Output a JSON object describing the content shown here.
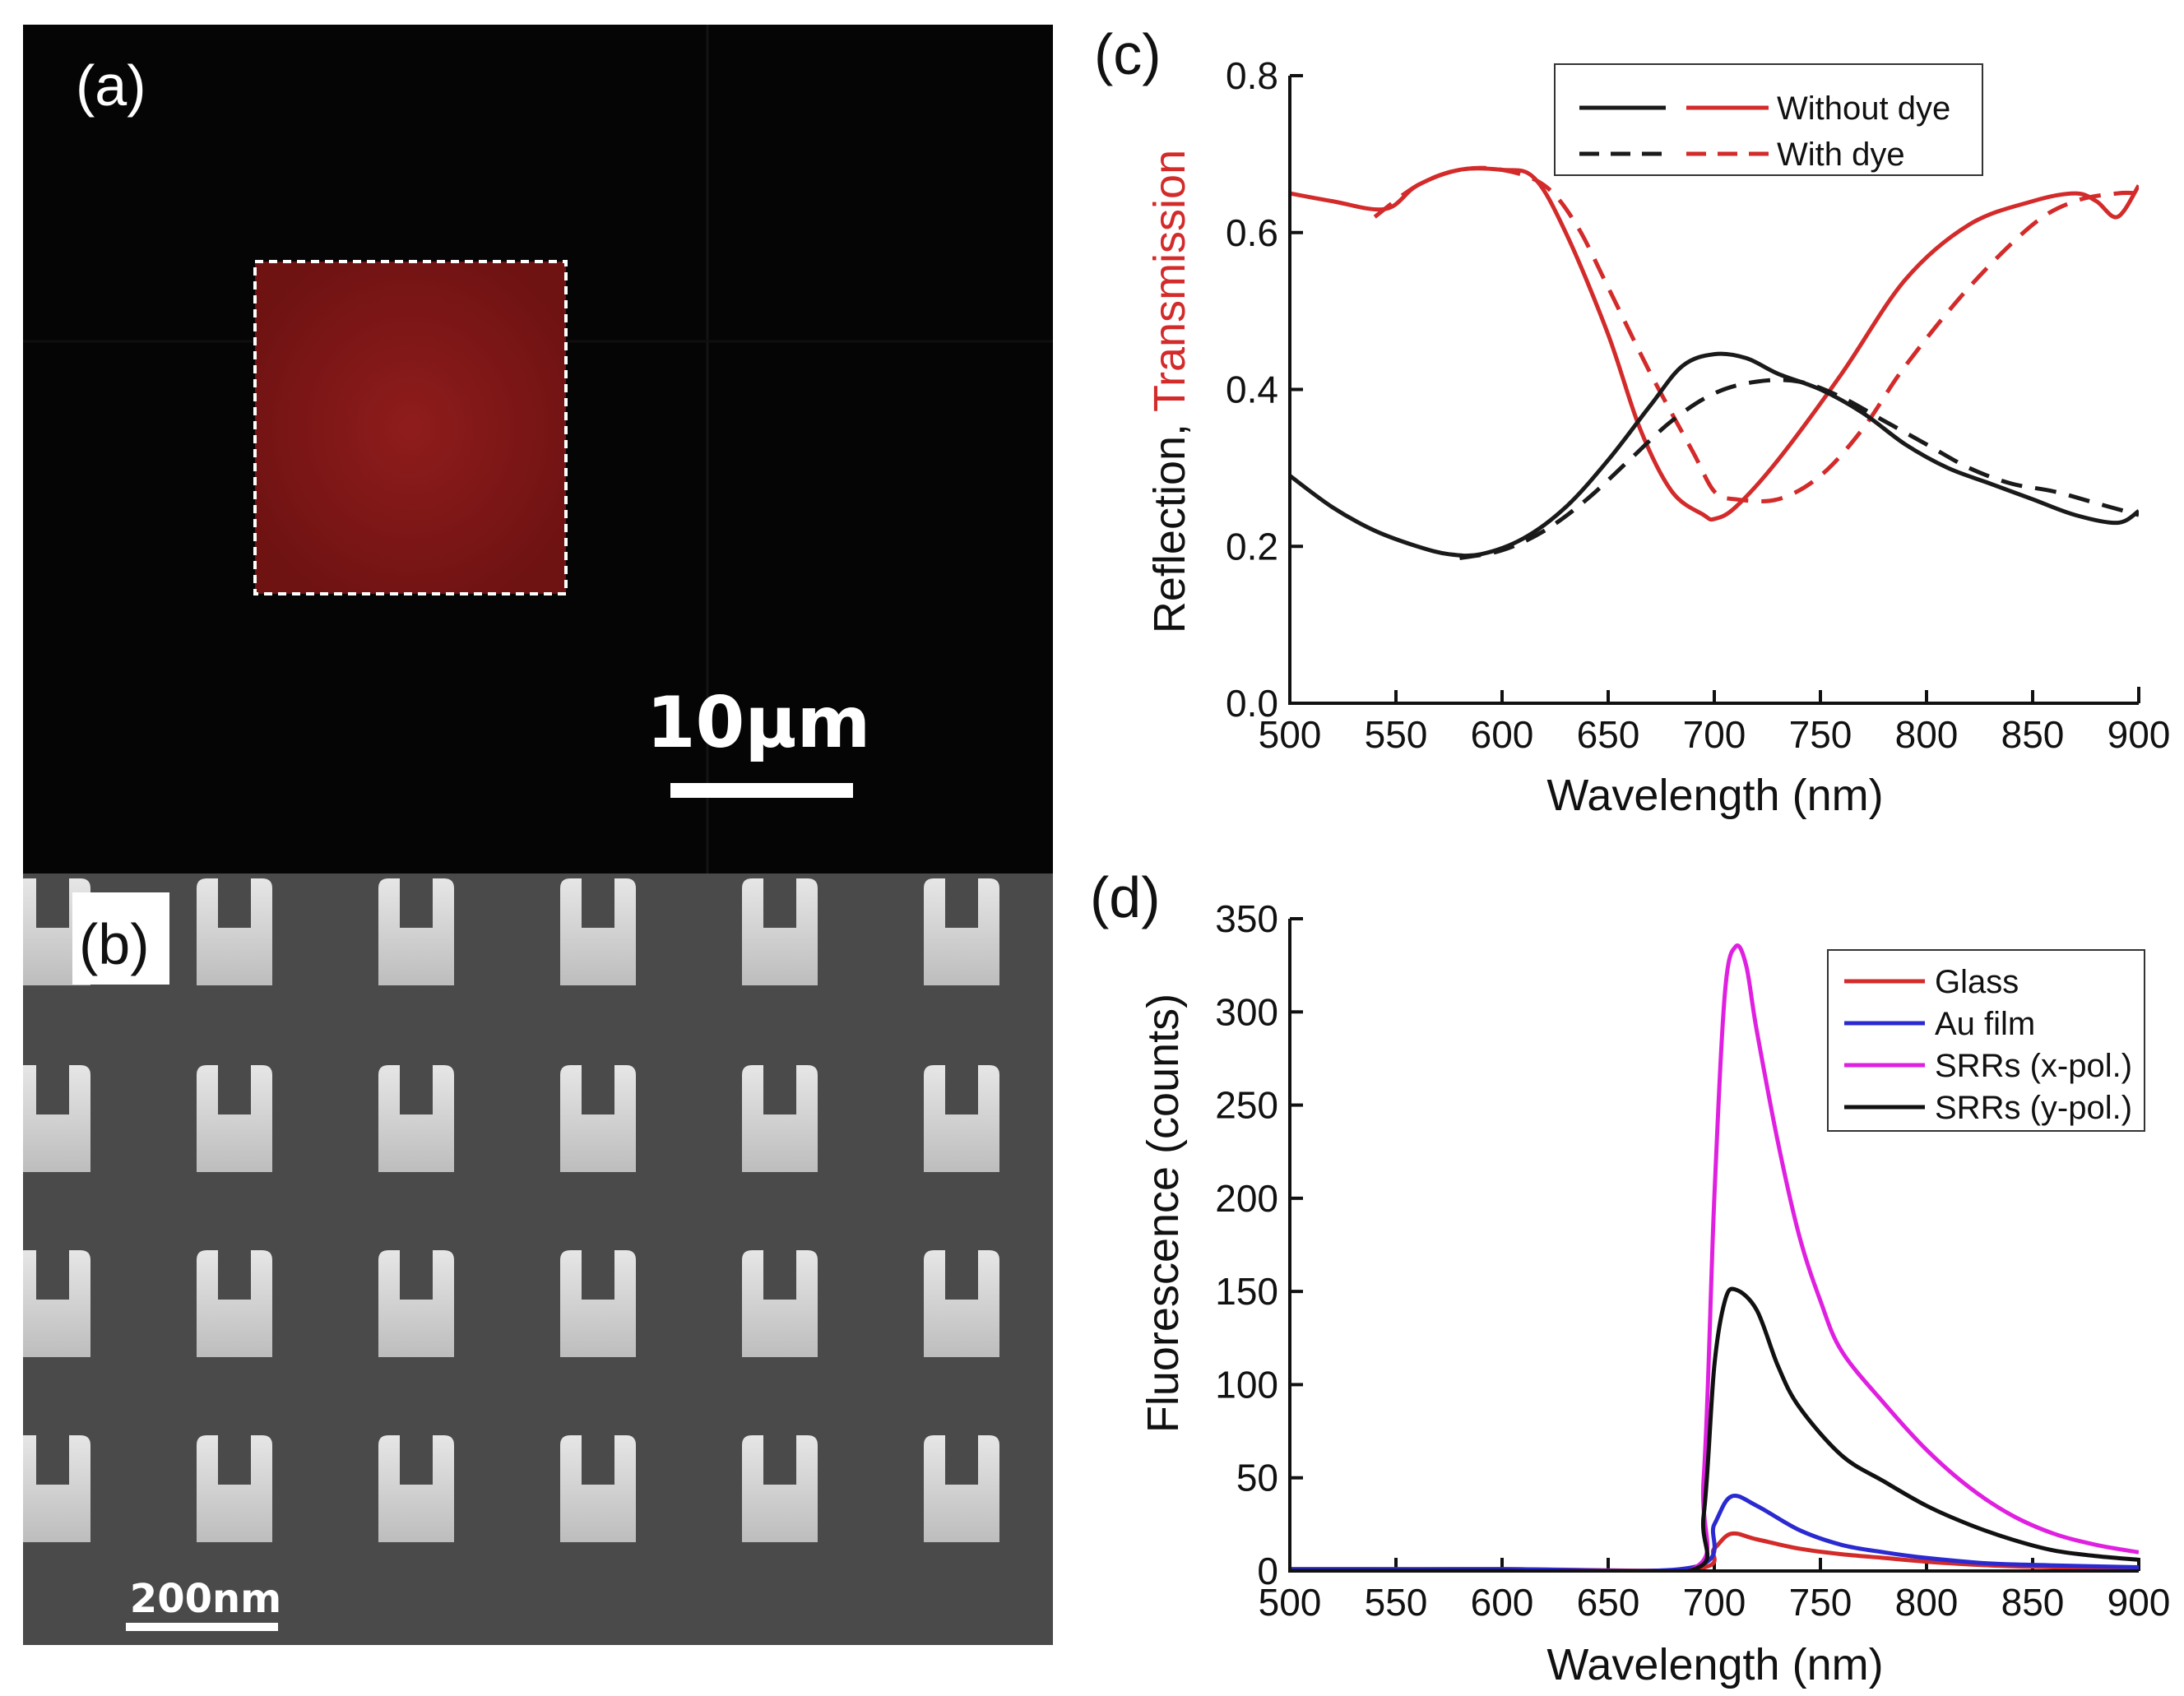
{
  "panels": {
    "a": {
      "label": "(a)",
      "scale_bar": "10μm",
      "colors": {
        "background": "#050505",
        "square": "#8a1a1a",
        "dashed": "#ffffff"
      }
    },
    "b": {
      "label": "(b)",
      "scale_bar": "200nm",
      "colors": {
        "background": "#4a4a4a",
        "srr": "#d8d8d8"
      }
    }
  },
  "chart_data": [
    {
      "id": "c",
      "type": "line",
      "panel_label": "(c)",
      "xlabel": "Wavelength (nm)",
      "ylabel_part1": "Reflection, ",
      "ylabel_part2": "Transmission",
      "xlim": [
        500,
        900
      ],
      "ylim": [
        0.0,
        0.8
      ],
      "xticks": [
        500,
        550,
        600,
        650,
        700,
        750,
        800,
        850,
        900
      ],
      "yticks": [
        "0.0",
        "0.2",
        "0.4",
        "0.6",
        "0.8"
      ],
      "legend": {
        "position": "top-right",
        "entries": [
          {
            "label": "Without dye",
            "style": "solid"
          },
          {
            "label": "With dye",
            "style": "dashed"
          }
        ]
      },
      "series": [
        {
          "name": "Transmission, without dye",
          "color": "#d32a2a",
          "style": "solid",
          "x": [
            500,
            520,
            545,
            560,
            580,
            600,
            615,
            630,
            650,
            665,
            680,
            695,
            700,
            710,
            730,
            760,
            790,
            820,
            850,
            870,
            880,
            890,
            900
          ],
          "y": [
            0.65,
            0.64,
            0.63,
            0.66,
            0.68,
            0.68,
            0.67,
            0.6,
            0.47,
            0.35,
            0.27,
            0.24,
            0.235,
            0.25,
            0.31,
            0.42,
            0.54,
            0.61,
            0.64,
            0.65,
            0.64,
            0.62,
            0.66
          ]
        },
        {
          "name": "Transmission, with dye",
          "color": "#d32a2a",
          "style": "dashed",
          "x": [
            540,
            560,
            580,
            600,
            620,
            635,
            650,
            670,
            690,
            700,
            710,
            730,
            750,
            770,
            790,
            820,
            850,
            870,
            890,
            900
          ],
          "y": [
            0.62,
            0.66,
            0.68,
            0.68,
            0.66,
            0.61,
            0.53,
            0.42,
            0.32,
            0.27,
            0.26,
            0.26,
            0.29,
            0.35,
            0.43,
            0.53,
            0.61,
            0.64,
            0.65,
            0.65
          ]
        },
        {
          "name": "Reflection, without dye",
          "color": "#1a1a1a",
          "style": "solid",
          "x": [
            500,
            520,
            540,
            560,
            575,
            590,
            610,
            630,
            650,
            670,
            685,
            700,
            715,
            730,
            750,
            770,
            790,
            810,
            830,
            850,
            870,
            890,
            900
          ],
          "y": [
            0.29,
            0.25,
            0.22,
            0.2,
            0.19,
            0.19,
            0.21,
            0.25,
            0.31,
            0.38,
            0.43,
            0.445,
            0.44,
            0.42,
            0.4,
            0.37,
            0.33,
            0.3,
            0.28,
            0.26,
            0.24,
            0.23,
            0.245
          ]
        },
        {
          "name": "Reflection, with dye",
          "color": "#1a1a1a",
          "style": "dashed",
          "x": [
            580,
            600,
            620,
            640,
            660,
            680,
            700,
            720,
            740,
            760,
            780,
            800,
            820,
            840,
            860,
            880,
            900
          ],
          "y": [
            0.185,
            0.195,
            0.22,
            0.26,
            0.31,
            0.36,
            0.395,
            0.41,
            0.41,
            0.39,
            0.36,
            0.33,
            0.3,
            0.28,
            0.27,
            0.255,
            0.24
          ]
        }
      ]
    },
    {
      "id": "d",
      "type": "line",
      "panel_label": "(d)",
      "xlabel": "Wavelength (nm)",
      "ylabel": "Fluorescence (counts)",
      "xlim": [
        500,
        900
      ],
      "ylim": [
        0,
        350
      ],
      "xticks": [
        500,
        550,
        600,
        650,
        700,
        750,
        800,
        850,
        900
      ],
      "yticks": [
        0,
        50,
        100,
        150,
        200,
        250,
        300,
        350
      ],
      "legend": {
        "position": "top-right"
      },
      "series": [
        {
          "name": "Glass",
          "color": "#d32a2a",
          "x": [
            500,
            600,
            690,
            700,
            708,
            720,
            740,
            760,
            780,
            800,
            830,
            860,
            900
          ],
          "y": [
            1,
            1,
            1,
            12,
            20,
            17,
            12,
            9,
            7,
            5,
            3,
            2,
            1
          ]
        },
        {
          "name": "Au film",
          "color": "#2a2ad0",
          "x": [
            500,
            600,
            690,
            700,
            708,
            720,
            740,
            760,
            780,
            800,
            830,
            860,
            900
          ],
          "y": [
            1,
            1,
            2,
            25,
            40,
            35,
            22,
            14,
            10,
            7,
            4,
            3,
            2
          ]
        },
        {
          "name": "SRRs (x-pol.)",
          "color": "#e020e0",
          "x": [
            500,
            600,
            688,
            695,
            700,
            705,
            710,
            715,
            720,
            730,
            740,
            750,
            760,
            780,
            800,
            820,
            840,
            860,
            880,
            900
          ],
          "y": [
            0,
            0,
            0,
            50,
            200,
            310,
            335,
            325,
            290,
            230,
            180,
            145,
            118,
            90,
            65,
            45,
            30,
            20,
            14,
            10
          ]
        },
        {
          "name": "SRRs (y-pol.)",
          "color": "#111111",
          "x": [
            500,
            600,
            688,
            695,
            700,
            705,
            710,
            720,
            730,
            740,
            760,
            780,
            800,
            820,
            840,
            860,
            880,
            900
          ],
          "y": [
            0,
            0,
            0,
            30,
            110,
            145,
            151,
            140,
            110,
            88,
            62,
            48,
            35,
            25,
            17,
            11,
            8,
            6
          ]
        }
      ]
    }
  ]
}
